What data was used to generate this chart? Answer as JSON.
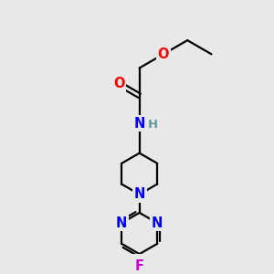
{
  "bg_color": "#e8e8e8",
  "bond_color": "#000000",
  "atom_colors": {
    "O": "#ff0000",
    "N": "#0000ff",
    "F": "#cc00cc",
    "H": "#669999",
    "C": "#000000"
  },
  "font_size": 10.5,
  "linewidth": 1.6
}
